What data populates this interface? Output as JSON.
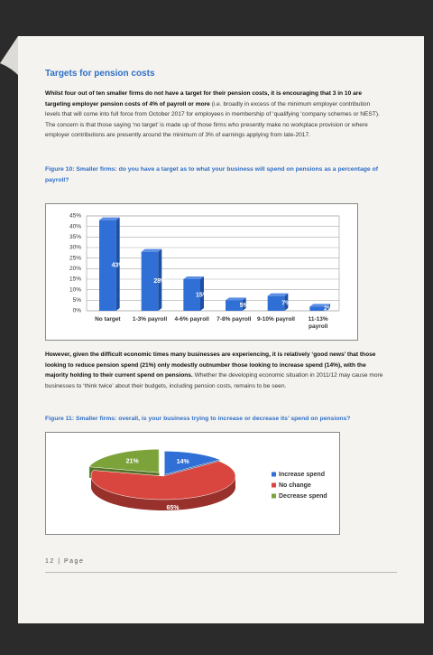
{
  "heading": "Targets for pension costs",
  "paragraphs": [
    {
      "bold": "Whilst four out of ten smaller firms do not have a target for their pension costs, it is encouraging that 3 in 10 are targeting employer pension costs of 4% of payroll or more",
      "text": " (i.e. broadly in excess of the minimum employer contribution levels that will come into full force from October 2017 for employees in membership of ‘qualifying ‘company schemes or NEST).  The concern is that those saying ‘no target’ is made up of those firms who presently make no workplace provision or where employer contributions are presently around the minimum of 3% of earnings applying from late-2017."
    },
    {
      "bold": "However, given the difficult economic times many businesses are experiencing, it is relatively ‘good news’ that those looking to reduce pension spend (21%) only modestly outnumber those looking to increase spend (14%), with  the majority holding to their current spend on pensions.",
      "text": "  Whether the developing economic situation in 2011/12 may cause more businesses to ‘think twice’ about their budgets, including pension costs, remains to be seen."
    }
  ],
  "chart_data": [
    {
      "type": "bar",
      "title": "Figure 10: Smaller firms: do you have a target as to what your business will spend on pensions as a percentage of payroll?",
      "categories": [
        "No target",
        "1-3% payroll",
        "4-6% payroll",
        "7-8% payroll",
        "9-10% payroll",
        "11-13% payroll"
      ],
      "values": [
        43,
        28,
        15,
        5,
        7,
        2
      ],
      "value_labels": [
        "43%",
        "28%",
        "15%",
        "5%",
        "7%",
        "2%"
      ],
      "color": "#2f6fd6",
      "ylim": [
        0,
        45
      ],
      "yticks": [
        {
          "value": 0,
          "label": "0%"
        },
        {
          "value": 5,
          "label": "5%"
        },
        {
          "value": 10,
          "label": "10%"
        },
        {
          "value": 15,
          "label": "15%"
        },
        {
          "value": 20,
          "label": "20%"
        },
        {
          "value": 25,
          "label": "25%"
        },
        {
          "value": 30,
          "label": "30%"
        },
        {
          "value": 35,
          "label": "35%"
        },
        {
          "value": 40,
          "label": "40%"
        },
        {
          "value": 45,
          "label": "45%"
        }
      ],
      "grid": true
    },
    {
      "type": "pie",
      "title": "Figure 11: Smaller firms: overall, is your business trying to increase or decrease its’ spend on pensions?",
      "categories": [
        "Increase spend",
        "No change",
        "Decrease spend"
      ],
      "values": [
        14,
        65,
        21
      ],
      "value_labels": [
        "14%",
        "65%",
        "21%"
      ],
      "colors": [
        "#2f6fd6",
        "#d9463f",
        "#7ba33a"
      ],
      "legend": "right"
    }
  ],
  "footer": "12 | Page"
}
